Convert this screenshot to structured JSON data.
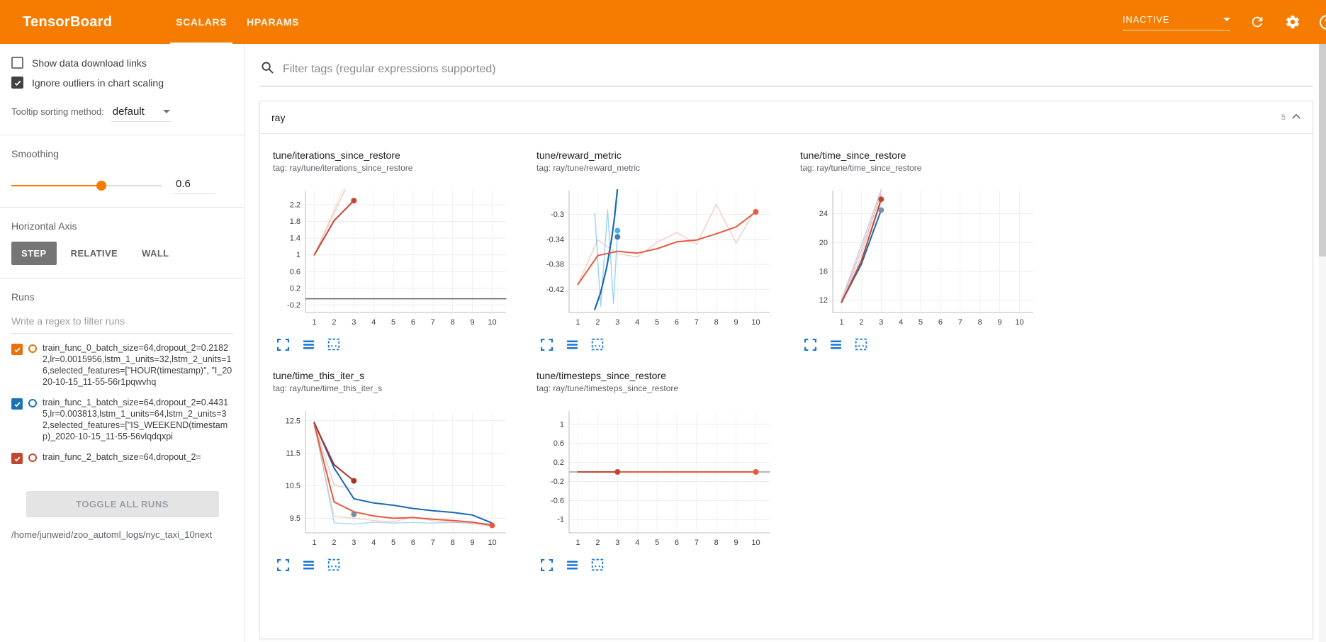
{
  "header": {
    "brand": "TensorBoard",
    "tabs": [
      {
        "label": "SCALARS",
        "active": true
      },
      {
        "label": "HPARAMS",
        "active": false
      }
    ],
    "status_select": "INACTIVE"
  },
  "icons": {
    "search": "magnifier",
    "refresh": "circular-arrow",
    "settings": "gear",
    "help": "question-mark-circle",
    "dropdown": "caret-down",
    "collapse": "chevron-up",
    "expand_chart": "corner-brackets",
    "runs_selector": "three-lines",
    "fit_domain": "dashed-box"
  },
  "colors": {
    "accent_orange": "#f57c00",
    "chart_icon_blue": "#1976d2",
    "run_orange": "#e8710a",
    "run_blue": "#1a73b8",
    "run_red": "#c5442e"
  },
  "sidebar": {
    "checkboxes": [
      {
        "label": "Show data download links",
        "checked": false
      },
      {
        "label": "Ignore outliers in chart scaling",
        "checked": true
      }
    ],
    "tooltip_sorting": {
      "label": "Tooltip sorting method:",
      "value": "default"
    },
    "smoothing": {
      "label": "Smoothing",
      "value": "0.6",
      "percent": 60
    },
    "horizontal_axis": {
      "label": "Horizontal Axis",
      "options": [
        "STEP",
        "RELATIVE",
        "WALL"
      ],
      "active": "STEP"
    },
    "runs": {
      "label": "Runs",
      "filter_placeholder": "Write a regex to filter runs",
      "items": [
        {
          "name": "train_func_0_batch_size=64,dropout_2=0.21822,lr=0.0015956,lstm_1_units=32,lstm_2_units=16,selected_features=[\"HOUR(timestamp)\", \"I_2020-10-15_11-55-56r1pqwvhq",
          "checked": true,
          "color": "#e8710a"
        },
        {
          "name": "train_func_1_batch_size=64,dropout_2=0.44315,lr=0.003813,lstm_1_units=64,lstm_2_units=32,selected_features=[\"IS_WEEKEND(timestamp)_2020-10-15_11-55-56vlqdqxpi",
          "checked": true,
          "color": "#1a73b8"
        },
        {
          "name": "train_func_2_batch_size=64,dropout_2=",
          "checked": true,
          "color": "#c5442e"
        }
      ],
      "toggle_all_label": "TOGGLE ALL RUNS",
      "log_dir": "/home/junweid/zoo_automl_logs/nyc_taxi_10next"
    }
  },
  "main": {
    "filter_placeholder": "Filter tags (regular expressions supported)",
    "category": {
      "name": "ray",
      "count": "5"
    }
  },
  "chart_data": [
    {
      "type": "line",
      "title": "tune/iterations_since_restore",
      "tag": "tag: ray/tune/iterations_since_restore",
      "xlabel": "",
      "ylabel": "",
      "xlim": [
        0.55,
        10.7
      ],
      "ylim": [
        -0.38,
        2.54
      ],
      "xticks": [
        1,
        2,
        3,
        4,
        5,
        6,
        7,
        8,
        9,
        10
      ],
      "yticks": [
        -0.2,
        0.2,
        0.6,
        1,
        1.4,
        1.8,
        2.2
      ],
      "series": [
        {
          "color": "#e88070",
          "width": 1.3,
          "opacity": 0.45,
          "points": [
            [
              1,
              1
            ],
            [
              2,
              2
            ],
            [
              3,
              3
            ]
          ]
        },
        {
          "color": "#f2a091",
          "width": 1.3,
          "opacity": 0.35,
          "points": [
            [
              1,
              1
            ],
            [
              2,
              2.08
            ],
            [
              3,
              3.15
            ]
          ]
        },
        {
          "color": "#5f6368",
          "width": 1.5,
          "opacity": 1,
          "points": [
            [
              0.55,
              -0.05
            ],
            [
              10.7,
              -0.05
            ]
          ]
        },
        {
          "color": "#c5442e",
          "width": 2,
          "opacity": 1,
          "points": [
            [
              1,
              1
            ],
            [
              2,
              1.82
            ],
            [
              3,
              2.3
            ]
          ],
          "dots": [
            [
              3,
              2.3
            ]
          ]
        }
      ]
    },
    {
      "type": "line",
      "title": "tune/reward_metric",
      "tag": "tag: ray/tune/reward_metric",
      "xlabel": "",
      "ylabel": "",
      "xlim": [
        0.55,
        10.7
      ],
      "ylim": [
        -0.457,
        -0.262
      ],
      "xticks": [
        1,
        2,
        3,
        4,
        5,
        6,
        7,
        8,
        9,
        10
      ],
      "yticks": [
        -0.42,
        -0.38,
        -0.34,
        -0.3
      ],
      "series": [
        {
          "color": "#f0957d",
          "width": 1.3,
          "opacity": 0.5,
          "points": [
            [
              1,
              -0.412
            ],
            [
              2,
              -0.341
            ],
            [
              3,
              -0.363
            ],
            [
              4,
              -0.368
            ],
            [
              5,
              -0.345
            ],
            [
              6,
              -0.329
            ],
            [
              7,
              -0.348
            ],
            [
              8,
              -0.284
            ],
            [
              9,
              -0.346
            ],
            [
              10,
              -0.291
            ]
          ]
        },
        {
          "color": "#85c9ef",
          "width": 1.4,
          "opacity": 0.8,
          "points": [
            [
              1.85,
              -0.298
            ],
            [
              2.15,
              -0.447
            ],
            [
              2.5,
              -0.293
            ],
            [
              2.8,
              -0.443
            ],
            [
              3,
              -0.328
            ]
          ],
          "dots": [
            [
              3,
              -0.326
            ]
          ],
          "dot_color": "#49b2e0"
        },
        {
          "color": "#1a68b5",
          "width": 2.2,
          "opacity": 1,
          "points": [
            [
              1.85,
              -0.452
            ],
            [
              2.15,
              -0.425
            ],
            [
              2.45,
              -0.385
            ],
            [
              2.7,
              -0.34
            ],
            [
              2.85,
              -0.305
            ],
            [
              3,
              -0.258
            ]
          ],
          "dots": [
            [
              3,
              -0.336
            ]
          ],
          "dot_color": "#3f7fbe"
        },
        {
          "color": "#e8593f",
          "width": 2,
          "opacity": 1,
          "points": [
            [
              1,
              -0.412
            ],
            [
              2,
              -0.366
            ],
            [
              3,
              -0.359
            ],
            [
              4,
              -0.362
            ],
            [
              5,
              -0.355
            ],
            [
              6,
              -0.344
            ],
            [
              7,
              -0.341
            ],
            [
              8,
              -0.331
            ],
            [
              9,
              -0.32
            ],
            [
              10,
              -0.296
            ]
          ],
          "dots": [
            [
              10,
              -0.296
            ]
          ]
        }
      ]
    },
    {
      "type": "line",
      "title": "tune/time_since_restore",
      "tag": "tag: ray/tune/time_since_restore",
      "xlabel": "",
      "ylabel": "",
      "xlim": [
        0.55,
        10.7
      ],
      "ylim": [
        10.3,
        27.2
      ],
      "xticks": [
        1,
        2,
        3,
        4,
        5,
        6,
        7,
        8,
        9,
        10
      ],
      "yticks": [
        12,
        16,
        20,
        24
      ],
      "series": [
        {
          "color": "#b7aed8",
          "width": 1.5,
          "opacity": 0.7,
          "points": [
            [
              1,
              12.1
            ],
            [
              2,
              19.6
            ],
            [
              3,
              27.3
            ]
          ]
        },
        {
          "color": "#c9c9c9",
          "width": 1.5,
          "opacity": 0.85,
          "points": [
            [
              1,
              12
            ],
            [
              2,
              18.9
            ],
            [
              3,
              26.7
            ]
          ]
        },
        {
          "color": "#eda79e",
          "width": 1.3,
          "opacity": 0.55,
          "points": [
            [
              1,
              11.9
            ],
            [
              2,
              18.2
            ],
            [
              3,
              26.9
            ]
          ]
        },
        {
          "color": "#9ec9e8",
          "width": 1.3,
          "opacity": 0.6,
          "points": [
            [
              1,
              11.85
            ],
            [
              2,
              17.7
            ],
            [
              3,
              25.4
            ]
          ]
        },
        {
          "color": "#1a68b5",
          "width": 2,
          "opacity": 1,
          "points": [
            [
              1,
              11.75
            ],
            [
              2,
              17
            ],
            [
              3,
              24.5
            ]
          ],
          "dots": [
            [
              3,
              24.5
            ]
          ],
          "dot_color": "#7a93a8"
        },
        {
          "color": "#c5442e",
          "width": 2,
          "opacity": 1,
          "points": [
            [
              1,
              11.7
            ],
            [
              2,
              17.4
            ],
            [
              3,
              26
            ]
          ],
          "dots": [
            [
              3,
              26
            ]
          ]
        }
      ]
    },
    {
      "type": "line",
      "title": "tune/time_this_iter_s",
      "tag": "tag: ray/tune/time_this_iter_s",
      "xlabel": "",
      "ylabel": "",
      "xlim": [
        0.55,
        10.7
      ],
      "ylim": [
        9.05,
        12.8
      ],
      "xticks": [
        1,
        2,
        3,
        4,
        5,
        6,
        7,
        8,
        9,
        10
      ],
      "yticks": [
        9.5,
        10.5,
        11.5,
        12.5
      ],
      "series": [
        {
          "color": "#8fd0f2",
          "width": 1.4,
          "opacity": 0.8,
          "points": [
            [
              1,
              12.45
            ],
            [
              2,
              9.36
            ],
            [
              3,
              9.32
            ],
            [
              4,
              9.38
            ],
            [
              5,
              9.35
            ],
            [
              6,
              9.37
            ],
            [
              7,
              9.35
            ],
            [
              8,
              9.37
            ],
            [
              9,
              9.35
            ],
            [
              10,
              9.34
            ]
          ]
        },
        {
          "color": "#f2916c",
          "width": 1.3,
          "opacity": 0.45,
          "points": [
            [
              1,
              12.35
            ],
            [
              2,
              9.56
            ],
            [
              3,
              9.5
            ],
            [
              4,
              9.43
            ],
            [
              5,
              9.39
            ],
            [
              6,
              9.54
            ],
            [
              7,
              9.42
            ],
            [
              8,
              9.38
            ],
            [
              9,
              9.33
            ],
            [
              10,
              9.26
            ]
          ]
        },
        {
          "color": "#de9089",
          "width": 1.3,
          "opacity": 0.5,
          "points": [
            [
              1,
              12.42
            ],
            [
              2,
              10.52
            ],
            [
              3,
              10.4
            ]
          ]
        },
        {
          "color": "#1a68b5",
          "width": 2,
          "opacity": 1,
          "points": [
            [
              1,
              12.45
            ],
            [
              2,
              11.05
            ],
            [
              3,
              10.1
            ],
            [
              4,
              9.97
            ],
            [
              5,
              9.9
            ],
            [
              6,
              9.8
            ],
            [
              7,
              9.73
            ],
            [
              8,
              9.68
            ],
            [
              9,
              9.6
            ],
            [
              10,
              9.35
            ]
          ]
        },
        {
          "color": "#a93226",
          "width": 2,
          "opacity": 1,
          "points": [
            [
              1,
              12.42
            ],
            [
              2,
              11.15
            ],
            [
              3,
              10.65
            ]
          ],
          "dots": [
            [
              3,
              10.65
            ]
          ]
        },
        {
          "color": "#e8593f",
          "width": 2,
          "opacity": 1,
          "points": [
            [
              1,
              12.38
            ],
            [
              2,
              10
            ],
            [
              3,
              9.7
            ],
            [
              4,
              9.57
            ],
            [
              5,
              9.5
            ],
            [
              6,
              9.52
            ],
            [
              7,
              9.47
            ],
            [
              8,
              9.43
            ],
            [
              9,
              9.38
            ],
            [
              10,
              9.28
            ]
          ],
          "dots": [
            [
              10,
              9.28
            ]
          ]
        },
        {
          "color": "#78909c",
          "width": 0,
          "opacity": 1,
          "points": [],
          "dots": [
            [
              3,
              9.62
            ]
          ]
        }
      ]
    },
    {
      "type": "line",
      "title": "tune/timesteps_since_restore",
      "tag": "tag: ray/tune/timesteps_since_restore",
      "xlabel": "",
      "ylabel": "",
      "xlim": [
        0.55,
        10.7
      ],
      "ylim": [
        -1.28,
        1.28
      ],
      "xticks": [
        1,
        2,
        3,
        4,
        5,
        6,
        7,
        8,
        9,
        10
      ],
      "yticks": [
        -1,
        -0.6,
        -0.2,
        0.2,
        0.6,
        1
      ],
      "series": [
        {
          "color": "#9e9e9e",
          "width": 1.5,
          "opacity": 1,
          "points": [
            [
              0.55,
              0
            ],
            [
              10.7,
              0
            ]
          ]
        },
        {
          "color": "#e8593f",
          "width": 2,
          "opacity": 1,
          "points": [
            [
              1,
              0
            ],
            [
              10,
              0
            ]
          ],
          "dots": [
            [
              10,
              0
            ]
          ]
        },
        {
          "color": "#c5442e",
          "width": 2,
          "opacity": 1,
          "points": [
            [
              1,
              0
            ],
            [
              3,
              0
            ]
          ],
          "dots": [
            [
              3,
              0
            ]
          ]
        }
      ]
    }
  ]
}
